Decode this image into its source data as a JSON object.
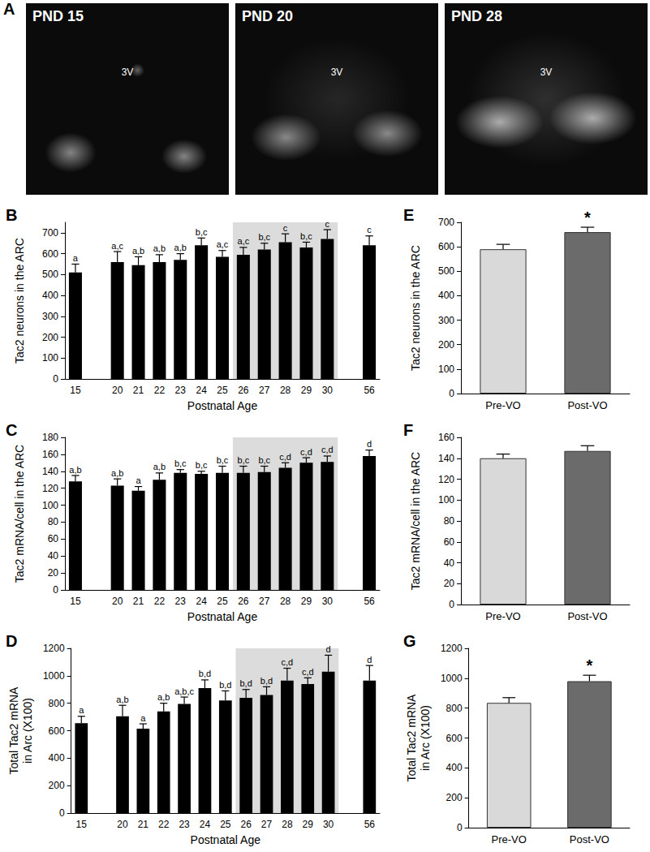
{
  "panel_A": {
    "label": "A",
    "images": [
      {
        "title": "PND 15",
        "marker": "3V"
      },
      {
        "title": "PND 20",
        "marker": "3V"
      },
      {
        "title": "PND 28",
        "marker": "3V"
      }
    ]
  },
  "chart_data": [
    {
      "type": "bar",
      "title": "B",
      "y_label": "Tac2 neurons in the ARC",
      "x_label": "Postnatal Age",
      "categories": [
        "15",
        null,
        "20",
        "21",
        "22",
        "23",
        "24",
        "25",
        "26",
        "27",
        "28",
        "29",
        "30",
        null,
        "56"
      ],
      "values": [
        510,
        null,
        560,
        545,
        560,
        570,
        640,
        585,
        595,
        620,
        655,
        630,
        670,
        null,
        640
      ],
      "errors": [
        40,
        null,
        50,
        40,
        35,
        30,
        35,
        30,
        35,
        30,
        40,
        25,
        45,
        null,
        45
      ],
      "annotations": [
        "a",
        null,
        "a,c",
        "a,b",
        "a,b",
        "a,b",
        "b,c",
        "a,c",
        "a,c",
        "b,c",
        "c",
        "b,c",
        "c",
        null,
        "c"
      ],
      "shaded_categories": [
        "26",
        "30"
      ],
      "color": "#000000",
      "ylim": [
        0,
        750
      ],
      "yticks": [
        0,
        100,
        200,
        300,
        400,
        500,
        600,
        700
      ],
      "grid": false
    },
    {
      "type": "bar",
      "title": "C",
      "y_label": "Tac2 mRNA/cell in the ARC",
      "x_label": "Postnatal Age",
      "categories": [
        "15",
        null,
        "20",
        "21",
        "22",
        "23",
        "24",
        "25",
        "26",
        "27",
        "28",
        "29",
        "30",
        null,
        "56"
      ],
      "values": [
        128,
        null,
        123,
        117,
        130,
        138,
        137,
        138,
        138,
        139,
        144,
        150,
        151,
        null,
        158
      ],
      "errors": [
        7,
        null,
        8,
        5,
        8,
        4,
        3,
        8,
        8,
        7,
        6,
        6,
        7,
        null,
        7
      ],
      "annotations": [
        "a,b",
        null,
        "a,b",
        "a",
        "a,b",
        "b,c",
        "b,c",
        "b,c",
        "b,c",
        "b,c",
        "c,d",
        "c,d",
        "c,d",
        null,
        "d"
      ],
      "shaded_categories": [
        "26",
        "30"
      ],
      "color": "#000000",
      "ylim": [
        0,
        180
      ],
      "yticks": [
        0,
        20,
        40,
        60,
        80,
        100,
        120,
        140,
        160,
        180
      ],
      "grid": false
    },
    {
      "type": "bar",
      "title": "D",
      "y_label": "Total Tac2 mRNA\nin Arc (X100)",
      "x_label": "Postnatal Age",
      "categories": [
        "15",
        null,
        "20",
        "21",
        "22",
        "23",
        "24",
        "25",
        "26",
        "27",
        "28",
        "29",
        "30",
        null,
        "56"
      ],
      "values": [
        655,
        null,
        705,
        615,
        740,
        795,
        910,
        820,
        840,
        860,
        965,
        940,
        1030,
        null,
        965
      ],
      "errors": [
        50,
        null,
        80,
        35,
        60,
        50,
        60,
        70,
        60,
        60,
        90,
        45,
        120,
        null,
        110
      ],
      "annotations": [
        "a",
        null,
        "a,b",
        "a",
        "a,b",
        "a,b,c",
        "b,d",
        "b,d",
        "b,d",
        "b,d",
        "c,d",
        "c,d",
        "d",
        null,
        "d"
      ],
      "shaded_categories": [
        "26",
        "30"
      ],
      "color": "#000000",
      "ylim": [
        0,
        1200
      ],
      "yticks": [
        0,
        200,
        400,
        600,
        800,
        1000,
        1200
      ],
      "grid": false
    },
    {
      "type": "bar",
      "title": "E",
      "y_label": "Tac2 neurons in the ARC",
      "categories": [
        "Pre-VO",
        "Post-VO"
      ],
      "values": [
        590,
        660
      ],
      "errors": [
        20,
        20
      ],
      "annotations": [
        null,
        "*"
      ],
      "colors": [
        "#d9d9d9",
        "#6b6b6b"
      ],
      "ylim": [
        0,
        700
      ],
      "yticks": [
        0,
        100,
        200,
        300,
        400,
        500,
        600,
        700
      ],
      "grid": false
    },
    {
      "type": "bar",
      "title": "F",
      "y_label": "Tac2 mRNA/cell in the ARC",
      "categories": [
        "Pre-VO",
        "Post-VO"
      ],
      "values": [
        140,
        147
      ],
      "errors": [
        4,
        5
      ],
      "colors": [
        "#d9d9d9",
        "#6b6b6b"
      ],
      "ylim": [
        0,
        160
      ],
      "yticks": [
        0,
        20,
        40,
        60,
        80,
        100,
        120,
        140,
        160
      ],
      "grid": false
    },
    {
      "type": "bar",
      "title": "G",
      "y_label": "Total Tac2 mRNA\nin Arc (X100)",
      "categories": [
        "Pre-VO",
        "Post-VO"
      ],
      "values": [
        835,
        980
      ],
      "errors": [
        35,
        40
      ],
      "annotations": [
        null,
        "*"
      ],
      "colors": [
        "#d9d9d9",
        "#6b6b6b"
      ],
      "ylim": [
        0,
        1200
      ],
      "yticks": [
        0,
        200,
        400,
        600,
        800,
        1000,
        1200
      ],
      "grid": false
    }
  ]
}
